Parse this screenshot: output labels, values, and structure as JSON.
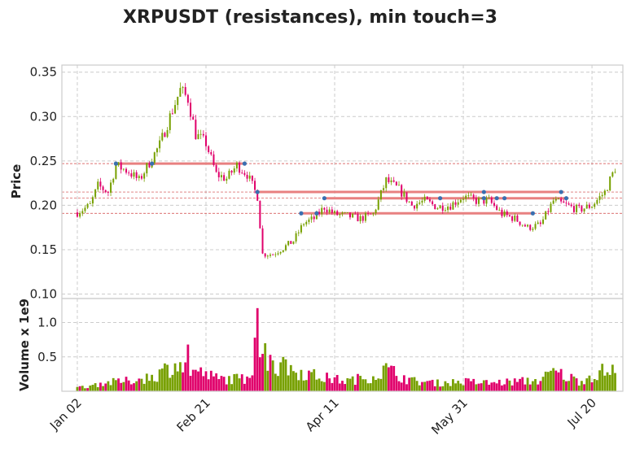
{
  "title": "XRPUSDT (resistances), min touch=3",
  "chart_data": {
    "type": "candlestick",
    "title": "XRPUSDT (resistances), min touch=3",
    "price_panel": {
      "ylabel": "Price",
      "ylim": [
        0.095,
        0.358
      ],
      "yticks": [
        0.1,
        0.15,
        0.2,
        0.25,
        0.3,
        0.35
      ],
      "ytick_labels": [
        "0.10",
        "0.15",
        "0.20",
        "0.25",
        "0.30",
        "0.35"
      ]
    },
    "volume_panel": {
      "ylabel": "Volume x 1e9",
      "ylim": [
        0,
        1.35
      ],
      "yticks": [
        0.5,
        1.0
      ],
      "ytick_labels": [
        "0.5",
        "1.0"
      ]
    },
    "x_axis": {
      "start_date": "2020-01-02",
      "day_range": [
        -6,
        212
      ],
      "ticks": [
        0,
        50,
        100,
        150,
        200
      ],
      "tick_labels": [
        "Jan 02",
        "Feb 21",
        "Apr 11",
        "May 31",
        "Jul 20"
      ],
      "grid": true
    },
    "colors": {
      "up": "#77a000",
      "down": "#e0006b",
      "resistance": "#e88080",
      "touch": "#3a6fb0"
    },
    "price_keypoints": [
      [
        0,
        0.192
      ],
      [
        5,
        0.2
      ],
      [
        8,
        0.222
      ],
      [
        12,
        0.215
      ],
      [
        15,
        0.245
      ],
      [
        20,
        0.238
      ],
      [
        24,
        0.228
      ],
      [
        28,
        0.248
      ],
      [
        32,
        0.268
      ],
      [
        36,
        0.3
      ],
      [
        40,
        0.33
      ],
      [
        43,
        0.32
      ],
      [
        46,
        0.28
      ],
      [
        50,
        0.27
      ],
      [
        54,
        0.235
      ],
      [
        58,
        0.23
      ],
      [
        62,
        0.245
      ],
      [
        66,
        0.235
      ],
      [
        70,
        0.21
      ],
      [
        72,
        0.145
      ],
      [
        76,
        0.145
      ],
      [
        80,
        0.152
      ],
      [
        84,
        0.16
      ],
      [
        88,
        0.18
      ],
      [
        92,
        0.185
      ],
      [
        96,
        0.198
      ],
      [
        100,
        0.19
      ],
      [
        105,
        0.188
      ],
      [
        110,
        0.185
      ],
      [
        115,
        0.19
      ],
      [
        120,
        0.228
      ],
      [
        125,
        0.218
      ],
      [
        130,
        0.2
      ],
      [
        135,
        0.205
      ],
      [
        140,
        0.198
      ],
      [
        145,
        0.2
      ],
      [
        150,
        0.21
      ],
      [
        155,
        0.205
      ],
      [
        160,
        0.205
      ],
      [
        165,
        0.19
      ],
      [
        170,
        0.185
      ],
      [
        175,
        0.175
      ],
      [
        180,
        0.178
      ],
      [
        185,
        0.205
      ],
      [
        190,
        0.2
      ],
      [
        195,
        0.195
      ],
      [
        200,
        0.2
      ],
      [
        205,
        0.215
      ],
      [
        209,
        0.242
      ]
    ],
    "volume_keypoints": [
      [
        0,
        0.05
      ],
      [
        10,
        0.12
      ],
      [
        20,
        0.15
      ],
      [
        30,
        0.22
      ],
      [
        38,
        0.4
      ],
      [
        45,
        0.3
      ],
      [
        55,
        0.18
      ],
      [
        65,
        0.18
      ],
      [
        70,
        0.5
      ],
      [
        72,
        0.6
      ],
      [
        76,
        0.4
      ],
      [
        85,
        0.3
      ],
      [
        95,
        0.2
      ],
      [
        105,
        0.15
      ],
      [
        115,
        0.22
      ],
      [
        120,
        0.32
      ],
      [
        130,
        0.15
      ],
      [
        140,
        0.12
      ],
      [
        150,
        0.14
      ],
      [
        160,
        0.12
      ],
      [
        170,
        0.14
      ],
      [
        180,
        0.16
      ],
      [
        185,
        0.28
      ],
      [
        195,
        0.15
      ],
      [
        205,
        0.3
      ],
      [
        210,
        0.3
      ]
    ],
    "volume_spikes": [
      [
        70,
        1.21
      ],
      [
        69,
        0.78
      ],
      [
        43,
        0.68
      ],
      [
        75,
        0.53
      ],
      [
        80,
        0.5
      ]
    ],
    "resistances": [
      {
        "level": 0.247,
        "from_day": 15,
        "to_day": 65,
        "touches": [
          15,
          29,
          65
        ]
      },
      {
        "level": 0.215,
        "from_day": 70,
        "to_day": 189,
        "touches": [
          70,
          158,
          188
        ]
      },
      {
        "level": 0.208,
        "from_day": 96,
        "to_day": 190,
        "touches": [
          96,
          141,
          158,
          163,
          166,
          190
        ]
      },
      {
        "level": 0.191,
        "from_day": 87,
        "to_day": 177,
        "touches": [
          87,
          93,
          177
        ]
      }
    ]
  }
}
